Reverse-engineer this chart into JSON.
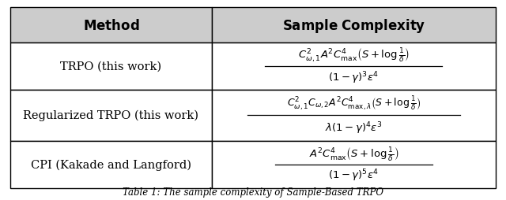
{
  "headers": [
    "Method",
    "Sample Complexity"
  ],
  "col_split": 0.415,
  "header_fontsize": 12,
  "cell_fontsize": 10.5,
  "math_fontsize": 9.5,
  "math_fontsize_small": 9.0,
  "bg_color": "#ffffff",
  "border_color": "#000000",
  "header_bg": "#cccccc",
  "caption": "Table 1: The sample complexity of Sample-Based TRPO",
  "caption_fontsize": 8.5,
  "rows": [
    "TRPO (this work)",
    "Regularized TRPO (this work)",
    "CPI (Kakade and Langford)"
  ],
  "formulas": {
    "trpo_num": "$C^2_{\\omega,1}A^2C^4_{\\mathrm{max}}\\left(S+\\log\\frac{1}{\\delta}\\right)$",
    "trpo_den": "$(1-\\gamma)^3\\epsilon^4$",
    "reg_num": "$C^2_{\\omega,1}C_{\\omega,2}A^2C^4_{\\mathrm{max},\\lambda}\\left(S+\\log\\frac{1}{\\delta}\\right)$",
    "reg_den": "$\\lambda(1-\\gamma)^4\\epsilon^3$",
    "cpi_num": "$A^2C^4_{\\mathrm{max}}\\left(S+\\log\\frac{1}{\\delta}\\right)$",
    "cpi_den": "$(1-\\gamma)^5\\epsilon^4$"
  }
}
